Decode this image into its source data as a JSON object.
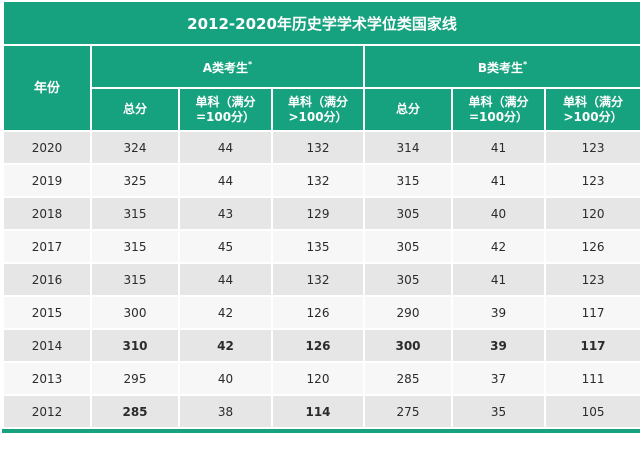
{
  "title": "2012-2020年历史学学术学位类国家线",
  "header": {
    "year": "年份",
    "group_a": "A类考生",
    "group_b": "B类考生",
    "group_mark": "*",
    "total": "总分",
    "single_low_line1": "单科（满分",
    "single_low_line2": "=100分）",
    "single_high_line1": "单科（满分",
    "single_high_line2": ">100分）"
  },
  "rows": [
    {
      "year": "2020",
      "a_total": "324",
      "a_low": "44",
      "a_high": "132",
      "b_total": "314",
      "b_low": "41",
      "b_high": "123"
    },
    {
      "year": "2019",
      "a_total": "325",
      "a_low": "44",
      "a_high": "132",
      "b_total": "315",
      "b_low": "41",
      "b_high": "123"
    },
    {
      "year": "2018",
      "a_total": "315",
      "a_low": "43",
      "a_high": "129",
      "b_total": "305",
      "b_low": "40",
      "b_high": "120"
    },
    {
      "year": "2017",
      "a_total": "315",
      "a_low": "45",
      "a_high": "135",
      "b_total": "305",
      "b_low": "42",
      "b_high": "126"
    },
    {
      "year": "2016",
      "a_total": "315",
      "a_low": "44",
      "a_high": "132",
      "b_total": "305",
      "b_low": "41",
      "b_high": "123"
    },
    {
      "year": "2015",
      "a_total": "300",
      "a_low": "42",
      "a_high": "126",
      "b_total": "290",
      "b_low": "39",
      "b_high": "117"
    },
    {
      "year": "2014",
      "a_total": "310",
      "a_low": "42",
      "a_high": "126",
      "b_total": "300",
      "b_low": "39",
      "b_high": "117"
    },
    {
      "year": "2013",
      "a_total": "295",
      "a_low": "40",
      "a_high": "120",
      "b_total": "285",
      "b_low": "37",
      "b_high": "111"
    },
    {
      "year": "2012",
      "a_total": "285",
      "a_low": "38",
      "a_high": "114",
      "b_total": "275",
      "b_low": "35",
      "b_high": "105"
    }
  ],
  "colors": {
    "header_green": "#17a27f",
    "row_dark": "#e6e6e6",
    "row_light": "#f7f7f7"
  }
}
